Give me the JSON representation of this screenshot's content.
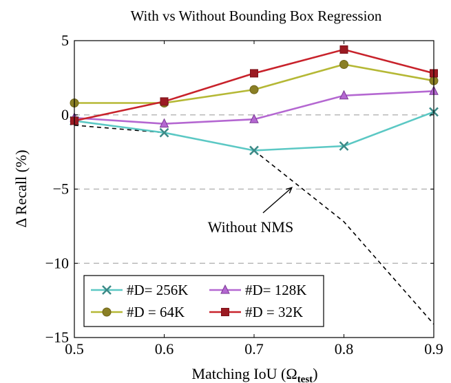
{
  "chart_data": {
    "type": "line",
    "title": "With vs Without Bounding Box Regression",
    "xlabel": "Matching IoU (Ω",
    "xlabel_sub": "test",
    "xlabel_close": ")",
    "ylabel": "Δ Recall (%)",
    "xlim": [
      0.5,
      0.9
    ],
    "ylim": [
      -15,
      5
    ],
    "x_ticks": [
      0.5,
      0.6,
      0.7,
      0.8,
      0.9
    ],
    "x_tick_labels": [
      "0.5",
      "0.6",
      "0.7",
      "0.8",
      "0.9"
    ],
    "y_ticks": [
      -15,
      -10,
      -5,
      0,
      5
    ],
    "y_tick_labels": [
      "−15",
      "−10",
      "−5",
      "0",
      "5"
    ],
    "grid": "horizontal dashed at y ticks",
    "legend_position": "bottom-left",
    "series": [
      {
        "name": "#D= 256K",
        "color": "#5bc8c4",
        "marker": "x",
        "x": [
          0.5,
          0.6,
          0.7,
          0.8,
          0.9
        ],
        "values": [
          -0.4,
          -1.2,
          -2.4,
          -2.1,
          0.2
        ]
      },
      {
        "name": "#D= 128K",
        "color": "#b467d1",
        "marker": "triangle",
        "x": [
          0.5,
          0.6,
          0.7,
          0.8,
          0.9
        ],
        "values": [
          -0.2,
          -0.6,
          -0.3,
          1.3,
          1.6
        ]
      },
      {
        "name": "#D = 64K",
        "color": "#b5b835",
        "marker": "circle",
        "x": [
          0.5,
          0.6,
          0.7,
          0.8,
          0.9
        ],
        "values": [
          0.8,
          0.8,
          1.7,
          3.4,
          2.3
        ]
      },
      {
        "name": "#D = 32K",
        "color": "#c8222b",
        "marker": "square",
        "x": [
          0.5,
          0.6,
          0.7,
          0.8,
          0.9
        ],
        "values": [
          -0.4,
          0.9,
          2.8,
          4.4,
          2.8
        ]
      }
    ],
    "reference_line": {
      "style": "dashed black",
      "x": [
        0.5,
        0.6,
        0.7,
        0.8,
        0.9
      ],
      "values": [
        -0.7,
        -1.2,
        -2.4,
        -7.2,
        -14.1
      ]
    },
    "annotation": {
      "text": "Without NMS",
      "arrow_to": [
        0.742,
        -4.9
      ]
    }
  }
}
